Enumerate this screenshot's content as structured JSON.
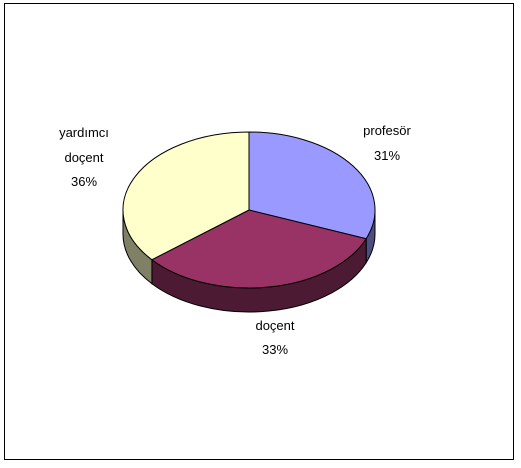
{
  "chart_data": {
    "type": "pie",
    "title": "",
    "style": "3d",
    "legend": "none",
    "slices": [
      {
        "name": "profesör",
        "value": 31,
        "value_label": "31%",
        "color": "#9999FF",
        "side_color": "#4D4D80"
      },
      {
        "name": "doçent",
        "value": 33,
        "value_label": "33%",
        "color": "#993366",
        "side_color": "#4D1A33"
      },
      {
        "name": "yardımcı doçent",
        "name_lines": [
          "yardımcı",
          "doçent"
        ],
        "value": 36,
        "value_label": "36%",
        "color": "#FFFFCC",
        "side_color": "#808066"
      }
    ]
  }
}
